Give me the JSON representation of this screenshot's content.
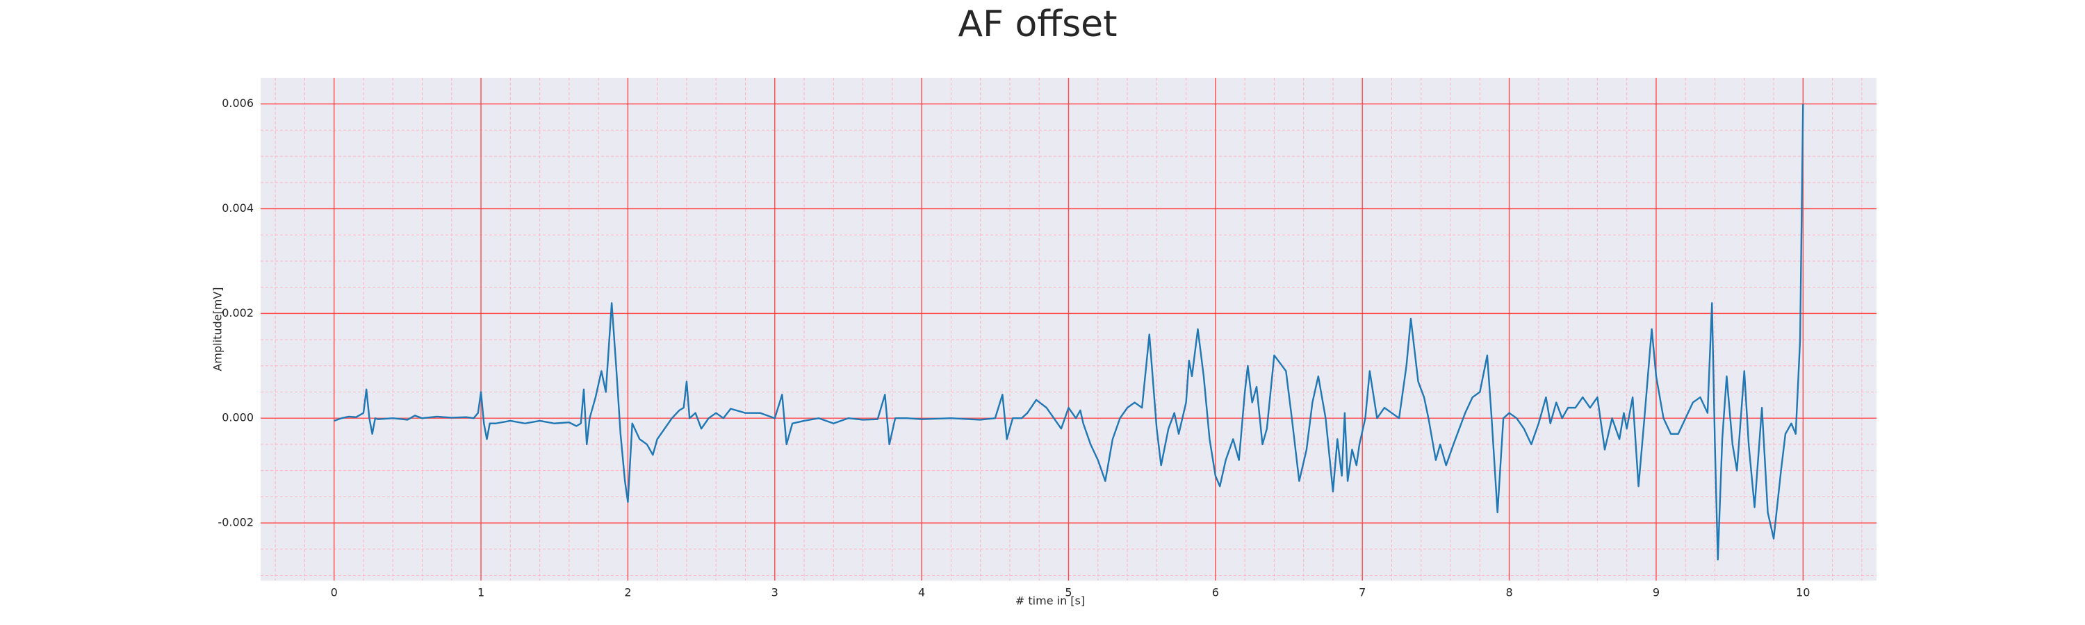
{
  "chart_data": {
    "type": "line",
    "title": "AF offset",
    "xlabel": "# time in [s]",
    "ylabel": "Amplitude[mV]",
    "color": "#1f77b4",
    "background": "#eaeaf2",
    "grid": true,
    "grid_color": "#ff4a4a",
    "minor_grid": true,
    "minor_grid_color": "#ffb3c1",
    "xlim": [
      -0.5,
      10.5
    ],
    "ylim": [
      -0.0031,
      0.0065
    ],
    "xticks": [
      0,
      1,
      2,
      3,
      4,
      5,
      6,
      7,
      8,
      9,
      10
    ],
    "yticks": [
      {
        "value": -0.002,
        "label": "-0.002"
      },
      {
        "value": 0,
        "label": "0.000"
      },
      {
        "value": 0.002,
        "label": "0.002"
      },
      {
        "value": 0.004,
        "label": "0.004"
      },
      {
        "value": 0.006,
        "label": "0.006"
      }
    ],
    "xminorticks": [
      -0.4,
      -0.2,
      0.2,
      0.4,
      0.6,
      0.8,
      1.2,
      1.4,
      1.6,
      1.8,
      2.2,
      2.4,
      2.6,
      2.8,
      3.2,
      3.4,
      3.6,
      3.8,
      4.2,
      4.4,
      4.6,
      4.8,
      5.2,
      5.4,
      5.6,
      5.8,
      6.2,
      6.4,
      6.6,
      6.8,
      7.2,
      7.4,
      7.6,
      7.8,
      8.2,
      8.4,
      8.6,
      8.8,
      9.2,
      9.4,
      9.6,
      9.8,
      10.2,
      10.4
    ],
    "yminorticks": [
      -0.003,
      -0.0025,
      -0.0015,
      -0.001,
      -0.0005,
      0.0005,
      0.001,
      0.0015,
      0.0025,
      0.003,
      0.0035,
      0.0045,
      0.005,
      0.0055
    ],
    "x": [
      0,
      0.05,
      0.1,
      0.15,
      0.2,
      0.22,
      0.24,
      0.26,
      0.28,
      0.3,
      0.4,
      0.5,
      0.55,
      0.6,
      0.7,
      0.8,
      0.9,
      0.95,
      0.98,
      1.0,
      1.02,
      1.04,
      1.06,
      1.1,
      1.2,
      1.3,
      1.4,
      1.5,
      1.6,
      1.65,
      1.68,
      1.7,
      1.72,
      1.74,
      1.78,
      1.82,
      1.85,
      1.89,
      1.92,
      1.95,
      1.98,
      2.0,
      2.03,
      2.08,
      2.13,
      2.17,
      2.2,
      2.25,
      2.3,
      2.35,
      2.38,
      2.4,
      2.42,
      2.46,
      2.5,
      2.55,
      2.6,
      2.65,
      2.7,
      2.8,
      2.9,
      3.0,
      3.05,
      3.08,
      3.12,
      3.2,
      3.3,
      3.4,
      3.5,
      3.6,
      3.7,
      3.75,
      3.78,
      3.82,
      3.9,
      4.0,
      4.2,
      4.4,
      4.5,
      4.55,
      4.58,
      4.62,
      4.68,
      4.72,
      4.78,
      4.85,
      4.9,
      4.95,
      5.0,
      5.05,
      5.08,
      5.1,
      5.15,
      5.2,
      5.25,
      5.3,
      5.35,
      5.4,
      5.45,
      5.5,
      5.55,
      5.6,
      5.63,
      5.68,
      5.72,
      5.75,
      5.8,
      5.82,
      5.84,
      5.88,
      5.92,
      5.96,
      6.0,
      6.03,
      6.07,
      6.12,
      6.16,
      6.2,
      6.22,
      6.25,
      6.28,
      6.32,
      6.35,
      6.4,
      6.48,
      6.52,
      6.57,
      6.62,
      6.66,
      6.7,
      6.75,
      6.8,
      6.83,
      6.86,
      6.88,
      6.9,
      6.93,
      6.96,
      6.98,
      7.02,
      7.05,
      7.1,
      7.15,
      7.2,
      7.25,
      7.3,
      7.33,
      7.38,
      7.42,
      7.45,
      7.5,
      7.53,
      7.57,
      7.62,
      7.7,
      7.75,
      7.8,
      7.85,
      7.88,
      7.92,
      7.96,
      8.0,
      8.05,
      8.1,
      8.15,
      8.2,
      8.25,
      8.28,
      8.32,
      8.36,
      8.4,
      8.45,
      8.5,
      8.55,
      8.6,
      8.65,
      8.7,
      8.75,
      8.78,
      8.8,
      8.84,
      8.88,
      8.92,
      8.97,
      9.0,
      9.05,
      9.1,
      9.15,
      9.2,
      9.25,
      9.3,
      9.35,
      9.38,
      9.4,
      9.42,
      9.45,
      9.48,
      9.52,
      9.55,
      9.6,
      9.63,
      9.67,
      9.72,
      9.76,
      9.8,
      9.85,
      9.88,
      9.92,
      9.95,
      9.98,
      10.0
    ],
    "y": [
      -5e-05,
      0,
      3e-05,
      2e-05,
      0.0001,
      0.00055,
      0,
      -0.0003,
      0,
      -2e-05,
      0,
      -3e-05,
      5e-05,
      0,
      3e-05,
      1e-05,
      2e-05,
      0,
      0.0001,
      0.0005,
      -0.0001,
      -0.0004,
      -0.0001,
      -0.0001,
      -5e-05,
      -0.0001,
      -5e-05,
      -0.0001,
      -8e-05,
      -0.00015,
      -0.0001,
      0.00055,
      -0.0005,
      0,
      0.0004,
      0.0009,
      0.0005,
      0.0022,
      0.001,
      -0.0003,
      -0.0012,
      -0.0016,
      -0.0001,
      -0.0004,
      -0.0005,
      -0.0007,
      -0.0004,
      -0.0002,
      0,
      0.00015,
      0.0002,
      0.0007,
      0,
      0.0001,
      -0.0002,
      0,
      0.0001,
      0,
      0.00018,
      0.0001,
      0.0001,
      0,
      0.00045,
      -0.0005,
      -0.0001,
      -5e-05,
      0,
      -0.0001,
      0,
      -3e-05,
      -2e-05,
      0.00045,
      -0.0005,
      0,
      0,
      -2e-05,
      0,
      -3e-05,
      0,
      0.00045,
      -0.0004,
      0,
      0,
      0.0001,
      0.00035,
      0.0002,
      0,
      -0.0002,
      0.0002,
      0,
      0.00015,
      -0.0001,
      -0.0005,
      -0.0008,
      -0.0012,
      -0.0004,
      0,
      0.0002,
      0.0003,
      0.0002,
      0.0016,
      -0.0002,
      -0.0009,
      -0.0002,
      0.0001,
      -0.0003,
      0.0003,
      0.0011,
      0.0008,
      0.0017,
      0.0008,
      -0.0004,
      -0.0011,
      -0.0013,
      -0.0008,
      -0.0004,
      -0.0008,
      0.0005,
      0.001,
      0.0003,
      0.0006,
      -0.0005,
      -0.0002,
      0.0012,
      0.0009,
      0,
      -0.0012,
      -0.0006,
      0.0003,
      0.0008,
      0,
      -0.0014,
      -0.0004,
      -0.0011,
      0.0001,
      -0.0012,
      -0.0006,
      -0.0009,
      -0.0005,
      0,
      0.0009,
      0,
      0.0002,
      0.0001,
      0,
      0.001,
      0.0019,
      0.0007,
      0.0004,
      0,
      -0.0008,
      -0.0005,
      -0.0009,
      -0.0005,
      0.0001,
      0.0004,
      0.0005,
      0.0012,
      0,
      -0.0018,
      0,
      0.0001,
      0,
      -0.0002,
      -0.0005,
      -0.0001,
      0.0004,
      -0.0001,
      0.0003,
      0,
      0.0002,
      0.0002,
      0.0004,
      0.0002,
      0.0004,
      -0.0006,
      0,
      -0.0004,
      0.0001,
      -0.0002,
      0.0004,
      -0.0013,
      0,
      0.0017,
      0.0008,
      0,
      -0.0003,
      -0.0003,
      0,
      0.0003,
      0.0004,
      0.0001,
      0.0022,
      -0.0005,
      -0.0027,
      -0.0004,
      0.0008,
      -0.0005,
      -0.001,
      0.0009,
      -0.0005,
      -0.0017,
      0.0002,
      -0.0018,
      -0.0023,
      -0.001,
      -0.0003,
      -0.0001,
      -0.0003,
      0.0015,
      0.006
    ]
  }
}
